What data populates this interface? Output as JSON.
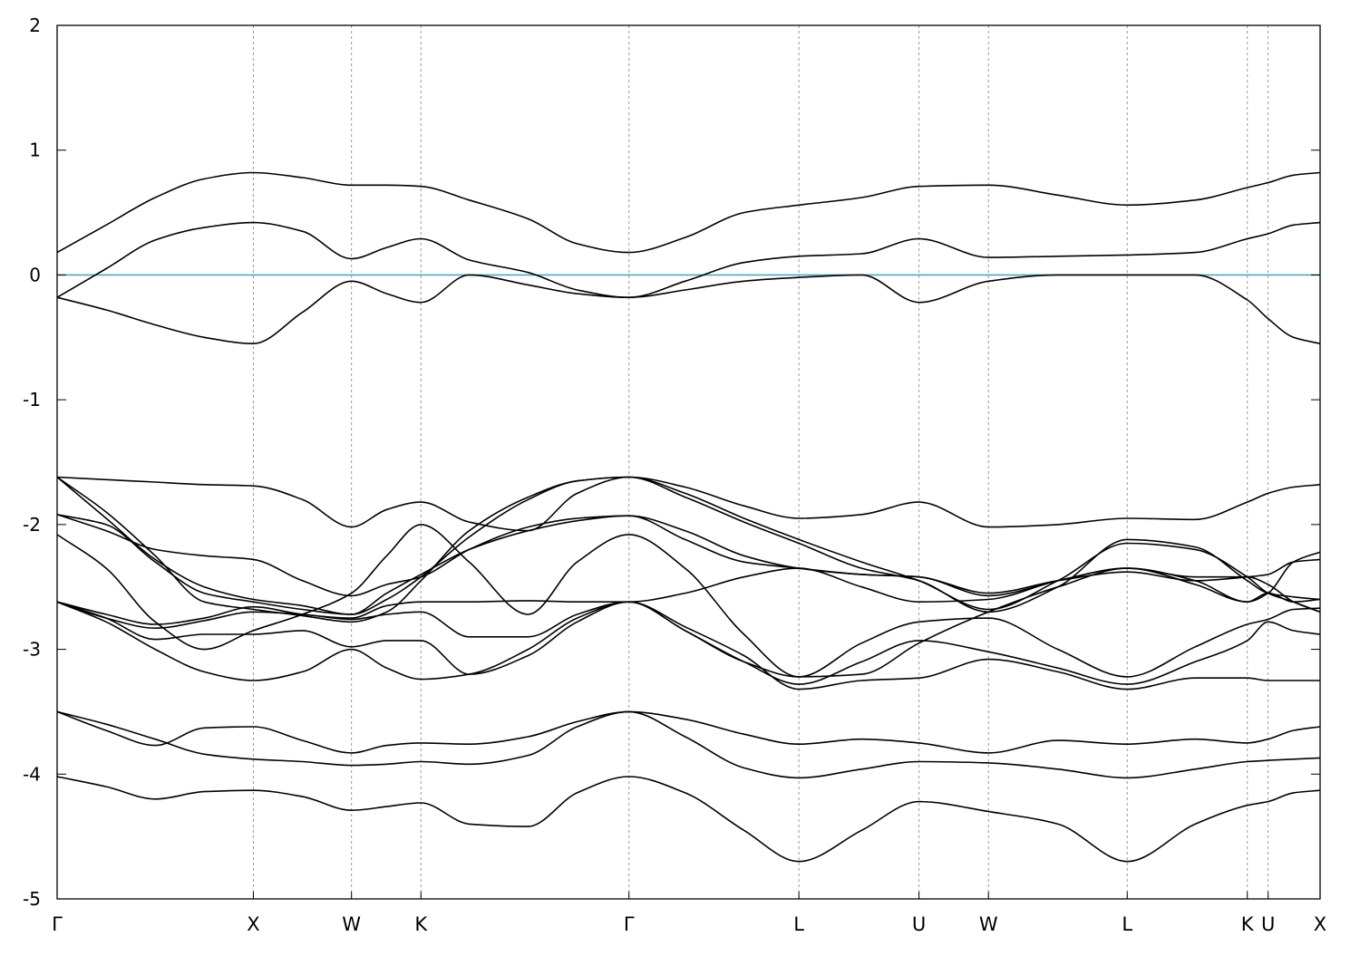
{
  "chart_data": {
    "type": "line",
    "title": "",
    "xlabel": "",
    "ylabel": "",
    "ylim": [
      -5,
      2
    ],
    "yticks": [
      2,
      1,
      0,
      -1,
      -2,
      -3,
      -4,
      -5
    ],
    "ytick_labels": [
      "2",
      "1",
      "0",
      "-1",
      "-2",
      "-3",
      "-4",
      "-5"
    ],
    "xlim": [
      0,
      6.436
    ],
    "kpoints": [
      {
        "label": "Γ",
        "x": 0.0
      },
      {
        "label": "X",
        "x": 1.0
      },
      {
        "label": "W",
        "x": 1.5
      },
      {
        "label": "K",
        "x": 1.854
      },
      {
        "label": "Γ",
        "x": 2.914
      },
      {
        "label": "L",
        "x": 3.78
      },
      {
        "label": "U",
        "x": 4.392
      },
      {
        "label": "W",
        "x": 4.746
      },
      {
        "label": "L",
        "x": 5.453
      },
      {
        "label": "K",
        "x": 6.065
      },
      {
        "label": "U",
        "x": 6.171
      },
      {
        "label": "X",
        "x": 6.436
      }
    ],
    "grid": "vertical dashed lines at high-symmetry points",
    "fermi_level": {
      "y": 0,
      "color": "#4ea8c4"
    },
    "series": [
      {
        "x": [
          0,
          0.25,
          0.5,
          0.75,
          1.0,
          1.25,
          1.5,
          1.68,
          1.854,
          2.1,
          2.4,
          2.65,
          2.914,
          3.2,
          3.5,
          3.78,
          4.1,
          4.392,
          4.746,
          5.1,
          5.453,
          5.8,
          6.065,
          6.171,
          6.3,
          6.436
        ],
        "y": [
          -4.02,
          -4.1,
          -4.2,
          -4.14,
          -4.13,
          -4.18,
          -4.29,
          -4.26,
          -4.23,
          -4.4,
          -4.42,
          -4.15,
          -4.02,
          -4.15,
          -4.45,
          -4.7,
          -4.45,
          -4.22,
          -4.3,
          -4.4,
          -4.7,
          -4.4,
          -4.25,
          -4.22,
          -4.15,
          -4.13
        ]
      },
      {
        "x": [
          0,
          0.25,
          0.5,
          0.75,
          1.0,
          1.25,
          1.5,
          1.68,
          1.854,
          2.1,
          2.4,
          2.65,
          2.914,
          3.2,
          3.5,
          3.78,
          4.1,
          4.392,
          4.746,
          5.1,
          5.453,
          5.8,
          6.065,
          6.171,
          6.3,
          6.436
        ],
        "y": [
          -3.5,
          -3.6,
          -3.72,
          -3.84,
          -3.88,
          -3.9,
          -3.93,
          -3.92,
          -3.9,
          -3.92,
          -3.85,
          -3.62,
          -3.5,
          -3.7,
          -3.95,
          -4.03,
          -3.96,
          -3.9,
          -3.91,
          -3.96,
          -4.03,
          -3.96,
          -3.9,
          -3.89,
          -3.88,
          -3.87
        ]
      },
      {
        "x": [
          0,
          0.25,
          0.5,
          0.75,
          1.0,
          1.25,
          1.5,
          1.68,
          1.854,
          2.1,
          2.4,
          2.65,
          2.914,
          3.2,
          3.5,
          3.78,
          4.1,
          4.392,
          4.746,
          5.1,
          5.453,
          5.8,
          6.065,
          6.171,
          6.3,
          6.436
        ],
        "y": [
          -3.5,
          -3.65,
          -3.77,
          -3.63,
          -3.62,
          -3.73,
          -3.83,
          -3.77,
          -3.75,
          -3.76,
          -3.7,
          -3.58,
          -3.5,
          -3.56,
          -3.68,
          -3.76,
          -3.72,
          -3.75,
          -3.83,
          -3.73,
          -3.76,
          -3.72,
          -3.75,
          -3.72,
          -3.65,
          -3.62
        ]
      },
      {
        "x": [
          0,
          0.25,
          0.5,
          0.75,
          1.0,
          1.25,
          1.5,
          1.68,
          1.854,
          2.1,
          2.4,
          2.65,
          2.914,
          3.2,
          3.5,
          3.78,
          4.1,
          4.392,
          4.746,
          5.1,
          5.453,
          5.8,
          6.065,
          6.171,
          6.3,
          6.436
        ],
        "y": [
          -2.62,
          -2.78,
          -3.0,
          -3.18,
          -3.25,
          -3.18,
          -3.0,
          -3.15,
          -3.24,
          -3.2,
          -3.0,
          -2.75,
          -2.62,
          -2.82,
          -3.05,
          -3.32,
          -3.25,
          -3.23,
          -3.08,
          -3.18,
          -3.32,
          -3.23,
          -3.23,
          -3.25,
          -3.25,
          -3.25
        ]
      },
      {
        "x": [
          0,
          0.25,
          0.5,
          0.75,
          1.0,
          1.25,
          1.5,
          1.68,
          1.854,
          2.1,
          2.4,
          2.65,
          2.914,
          3.2,
          3.5,
          3.78,
          4.1,
          4.392,
          4.746,
          5.1,
          5.453,
          5.8,
          6.065,
          6.171,
          6.3,
          6.436
        ],
        "y": [
          -2.62,
          -2.75,
          -2.92,
          -2.88,
          -2.88,
          -2.85,
          -2.98,
          -2.93,
          -2.93,
          -3.2,
          -3.05,
          -2.78,
          -2.62,
          -2.85,
          -3.1,
          -3.28,
          -3.1,
          -2.93,
          -3.02,
          -3.15,
          -3.28,
          -3.1,
          -2.93,
          -2.78,
          -2.85,
          -2.88
        ]
      },
      {
        "x": [
          0,
          0.25,
          0.5,
          0.75,
          1.0,
          1.25,
          1.5,
          1.68,
          1.854,
          2.1,
          2.4,
          2.65,
          2.914,
          3.2,
          3.5,
          3.78,
          4.1,
          4.392,
          4.746,
          5.1,
          5.453,
          5.8,
          6.065,
          6.171,
          6.3,
          6.436
        ],
        "y": [
          -2.62,
          -2.75,
          -2.83,
          -2.77,
          -2.7,
          -2.72,
          -2.76,
          -2.72,
          -2.7,
          -2.9,
          -2.9,
          -2.72,
          -2.62,
          -2.85,
          -3.1,
          -3.22,
          -2.95,
          -2.78,
          -2.75,
          -3.0,
          -3.22,
          -2.98,
          -2.8,
          -2.76,
          -2.68,
          -2.67
        ]
      },
      {
        "x": [
          0,
          0.25,
          0.5,
          0.75,
          1.0,
          1.25,
          1.5,
          1.68,
          1.854,
          2.1,
          2.4,
          2.65,
          2.914,
          3.2,
          3.5,
          3.78,
          4.1,
          4.392,
          4.746,
          5.1,
          5.453,
          5.8,
          6.065,
          6.171,
          6.3,
          6.436
        ],
        "y": [
          -2.62,
          -2.72,
          -2.8,
          -2.75,
          -2.66,
          -2.72,
          -2.75,
          -2.65,
          -2.62,
          -2.62,
          -2.61,
          -2.62,
          -2.62,
          -2.55,
          -2.42,
          -2.35,
          -2.5,
          -2.62,
          -2.6,
          -2.45,
          -2.35,
          -2.45,
          -2.62,
          -2.55,
          -2.62,
          -2.6
        ]
      },
      {
        "x": [
          0,
          0.25,
          0.5,
          0.75,
          1.0,
          1.25,
          1.5,
          1.68,
          1.854,
          2.1,
          2.4,
          2.65,
          2.914,
          3.2,
          3.5,
          3.78,
          4.1,
          4.392,
          4.746,
          5.1,
          5.453,
          5.8,
          6.065,
          6.171,
          6.3,
          6.436
        ],
        "y": [
          -2.08,
          -2.35,
          -2.78,
          -3.0,
          -2.85,
          -2.72,
          -2.55,
          -2.25,
          -2.0,
          -2.3,
          -2.72,
          -2.3,
          -2.08,
          -2.35,
          -2.88,
          -3.22,
          -3.2,
          -2.95,
          -2.7,
          -2.5,
          -2.35,
          -2.48,
          -2.62,
          -2.55,
          -2.3,
          -2.22
        ]
      },
      {
        "x": [
          0,
          0.25,
          0.5,
          0.75,
          1.0,
          1.25,
          1.5,
          1.68,
          1.854,
          2.1,
          2.4,
          2.65,
          2.914,
          3.2,
          3.5,
          3.78,
          4.1,
          4.392,
          4.746,
          5.1,
          5.453,
          5.8,
          6.065,
          6.171,
          6.3,
          6.436
        ],
        "y": [
          -1.92,
          -2.05,
          -2.2,
          -2.25,
          -2.28,
          -2.45,
          -2.57,
          -2.48,
          -2.42,
          -2.2,
          -2.02,
          -1.95,
          -1.93,
          -2.12,
          -2.3,
          -2.35,
          -2.4,
          -2.42,
          -2.57,
          -2.45,
          -2.35,
          -2.42,
          -2.42,
          -2.48,
          -2.62,
          -2.7
        ]
      },
      {
        "x": [
          0,
          0.25,
          0.5,
          0.75,
          1.0,
          1.25,
          1.5,
          1.68,
          1.854,
          2.1,
          2.4,
          2.65,
          2.914,
          3.2,
          3.5,
          3.78,
          4.1,
          4.392,
          4.746,
          5.1,
          5.453,
          5.8,
          6.065,
          6.171,
          6.3,
          6.436
        ],
        "y": [
          -1.92,
          -2.0,
          -2.3,
          -2.55,
          -2.62,
          -2.68,
          -2.72,
          -2.55,
          -2.4,
          -2.2,
          -2.05,
          -1.97,
          -1.93,
          -2.05,
          -2.25,
          -2.35,
          -2.4,
          -2.42,
          -2.55,
          -2.45,
          -2.38,
          -2.45,
          -2.42,
          -2.4,
          -2.3,
          -2.28
        ]
      },
      {
        "x": [
          0,
          0.25,
          0.5,
          0.75,
          1.0,
          1.25,
          1.5,
          1.68,
          1.854,
          2.1,
          2.4,
          2.65,
          2.914,
          3.2,
          3.5,
          3.78,
          4.1,
          4.392,
          4.746,
          5.1,
          5.453,
          5.8,
          6.065,
          6.171,
          6.3,
          6.436
        ],
        "y": [
          -1.62,
          -1.95,
          -2.28,
          -2.5,
          -2.6,
          -2.65,
          -2.72,
          -2.6,
          -2.42,
          -2.1,
          -1.8,
          -1.65,
          -1.62,
          -1.75,
          -1.95,
          -2.12,
          -2.3,
          -2.45,
          -2.68,
          -2.45,
          -2.15,
          -2.2,
          -2.42,
          -2.55,
          -2.62,
          -2.7
        ]
      },
      {
        "x": [
          0,
          0.25,
          0.5,
          0.75,
          1.0,
          1.25,
          1.5,
          1.68,
          1.854,
          2.1,
          2.4,
          2.65,
          2.914,
          3.2,
          3.5,
          3.78,
          4.1,
          4.392,
          4.746,
          5.1,
          5.453,
          5.8,
          6.065,
          6.171,
          6.3,
          6.436
        ],
        "y": [
          -1.62,
          -1.9,
          -2.25,
          -2.62,
          -2.68,
          -2.73,
          -2.78,
          -2.7,
          -2.45,
          -2.05,
          -1.78,
          -1.65,
          -1.62,
          -1.78,
          -1.98,
          -2.15,
          -2.35,
          -2.45,
          -2.7,
          -2.5,
          -2.12,
          -2.18,
          -2.45,
          -2.55,
          -2.58,
          -2.6
        ]
      },
      {
        "x": [
          0,
          0.25,
          0.5,
          0.75,
          1.0,
          1.25,
          1.5,
          1.68,
          1.854,
          2.1,
          2.4,
          2.65,
          2.914,
          3.2,
          3.5,
          3.78,
          4.1,
          4.392,
          4.746,
          5.1,
          5.453,
          5.8,
          6.065,
          6.171,
          6.3,
          6.436
        ],
        "y": [
          -1.62,
          -1.64,
          -1.66,
          -1.68,
          -1.69,
          -1.8,
          -2.02,
          -1.88,
          -1.82,
          -1.98,
          -2.05,
          -1.75,
          -1.62,
          -1.7,
          -1.85,
          -1.95,
          -1.92,
          -1.82,
          -2.02,
          -2.0,
          -1.95,
          -1.96,
          -1.82,
          -1.75,
          -1.7,
          -1.68
        ]
      },
      {
        "x": [
          0,
          0.25,
          0.5,
          0.75,
          1.0,
          1.25,
          1.5,
          1.68,
          1.854,
          2.1,
          2.4,
          2.65,
          2.914,
          3.2,
          3.5,
          3.78,
          4.1,
          4.392,
          4.746,
          5.1,
          5.453,
          5.8,
          6.065,
          6.171,
          6.3,
          6.436
        ],
        "y": [
          -0.18,
          -0.28,
          -0.4,
          -0.5,
          -0.55,
          -0.3,
          -0.05,
          -0.15,
          -0.22,
          0.0,
          -0.08,
          -0.15,
          -0.18,
          -0.12,
          -0.05,
          -0.02,
          0.0,
          -0.22,
          -0.05,
          0.0,
          0.0,
          0.0,
          -0.2,
          -0.35,
          -0.5,
          -0.55
        ]
      },
      {
        "x": [
          0,
          0.25,
          0.5,
          0.75,
          1.0,
          1.25,
          1.5,
          1.68,
          1.854,
          2.1,
          2.4,
          2.65,
          2.914,
          3.2,
          3.5,
          3.78,
          4.1,
          4.392,
          4.746,
          5.1,
          5.453,
          5.8,
          6.065,
          6.171,
          6.3,
          6.436
        ],
        "y": [
          -0.18,
          0.05,
          0.28,
          0.38,
          0.42,
          0.35,
          0.13,
          0.22,
          0.29,
          0.12,
          0.02,
          -0.12,
          -0.18,
          -0.05,
          0.1,
          0.15,
          0.17,
          0.29,
          0.14,
          0.15,
          0.16,
          0.18,
          0.29,
          0.33,
          0.4,
          0.42
        ]
      },
      {
        "x": [
          0,
          0.25,
          0.5,
          0.75,
          1.0,
          1.25,
          1.5,
          1.68,
          1.854,
          2.1,
          2.4,
          2.65,
          2.914,
          3.2,
          3.5,
          3.78,
          4.1,
          4.392,
          4.746,
          5.1,
          5.453,
          5.8,
          6.065,
          6.171,
          6.3,
          6.436
        ],
        "y": [
          0.18,
          0.4,
          0.62,
          0.77,
          0.82,
          0.78,
          0.72,
          0.72,
          0.71,
          0.6,
          0.45,
          0.25,
          0.18,
          0.3,
          0.5,
          0.56,
          0.62,
          0.71,
          0.72,
          0.64,
          0.56,
          0.6,
          0.7,
          0.74,
          0.8,
          0.82
        ]
      }
    ]
  }
}
